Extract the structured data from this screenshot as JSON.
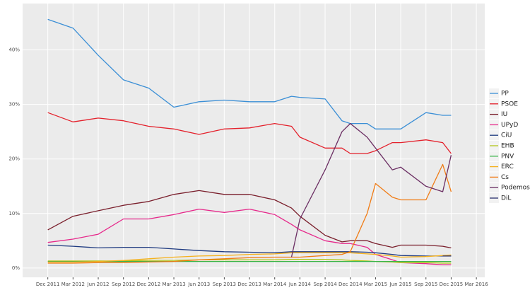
{
  "chart_data": {
    "type": "line",
    "x": [
      "2011-12",
      "2012-03",
      "2012-06",
      "2012-09",
      "2012-12",
      "2013-03",
      "2013-06",
      "2013-09",
      "2013-12",
      "2014-03",
      "2014-05",
      "2014-06",
      "2014-09",
      "2014-11",
      "2014-12",
      "2015-02",
      "2015-03",
      "2015-05",
      "2015-06",
      "2015-09",
      "2015-11",
      "2015-12"
    ],
    "series": [
      {
        "name": "PP",
        "color": "#3b8fd6",
        "values": [
          45.6,
          44,
          39,
          34.5,
          33,
          29.5,
          30.5,
          30.8,
          30.5,
          30.5,
          31.5,
          31.3,
          31,
          27,
          26.5,
          26.5,
          25.5,
          25.5,
          25.5,
          28.5,
          28,
          28
        ]
      },
      {
        "name": "PSOE",
        "color": "#e4202b",
        "values": [
          28.5,
          26.8,
          27.5,
          27,
          26,
          25.5,
          24.5,
          25.5,
          25.7,
          26.5,
          26,
          24,
          22,
          22,
          21,
          21,
          21.5,
          23,
          23,
          23.5,
          23,
          21
        ]
      },
      {
        "name": "IU",
        "color": "#7a1f2c",
        "values": [
          7,
          9.5,
          10.5,
          11.5,
          12.2,
          13.5,
          14.2,
          13.5,
          13.5,
          12.5,
          11,
          9.5,
          6,
          4.8,
          5,
          5,
          4.5,
          3.8,
          4.2,
          4.2,
          4,
          3.7
        ]
      },
      {
        "name": "UPyD",
        "color": "#e6298b",
        "values": [
          4.7,
          5.3,
          6.2,
          9,
          9,
          9.8,
          10.8,
          10.2,
          10.8,
          9.8,
          8,
          7,
          5,
          4.5,
          4.5,
          3.8,
          2.5,
          1.5,
          1,
          0.8,
          0.6,
          0.6
        ]
      },
      {
        "name": "CiU",
        "color": "#1e3a80",
        "values": [
          4.2,
          4,
          3.7,
          3.8,
          3.8,
          3.5,
          3.2,
          3,
          2.9,
          2.8,
          3,
          3,
          3,
          3,
          3,
          2.9,
          2.8,
          2.5,
          2.3,
          2.2,
          2.2,
          2.2
        ]
      },
      {
        "name": "EHB",
        "color": "#b3c51a",
        "values": [
          1.3,
          1.3,
          1.3,
          1.3,
          1.4,
          1.4,
          1.5,
          1.5,
          1.5,
          1.5,
          1.6,
          1.6,
          1.6,
          1.5,
          1.4,
          1.3,
          1.2,
          1.1,
          1,
          1,
          0.9,
          0.9
        ]
      },
      {
        "name": "PNV",
        "color": "#3bb54a",
        "values": [
          1.2,
          1.2,
          1.2,
          1.2,
          1.2,
          1.2,
          1.2,
          1.2,
          1.2,
          1.2,
          1.2,
          1.2,
          1.2,
          1.2,
          1.2,
          1.2,
          1.2,
          1.2,
          1.2,
          1.2,
          1.2,
          1.2
        ]
      },
      {
        "name": "ERC",
        "color": "#f5b11c",
        "values": [
          1.1,
          1.1,
          1.2,
          1.4,
          1.7,
          2,
          2.2,
          2.3,
          2.5,
          2.6,
          2.8,
          2.8,
          2.8,
          2.8,
          2.8,
          2.6,
          2.5,
          2.2,
          2,
          2.1,
          2.3,
          2.4
        ]
      },
      {
        "name": "Cs",
        "color": "#f07c16",
        "values": [
          0.9,
          0.9,
          1,
          1,
          1.1,
          1.2,
          1.5,
          1.7,
          1.9,
          2,
          2,
          2,
          2.3,
          2.5,
          3,
          10,
          15.5,
          13,
          12.5,
          12.5,
          19,
          14
        ]
      },
      {
        "name": "Podemos",
        "color": "#6b2e63",
        "values": [
          null,
          null,
          null,
          null,
          null,
          null,
          null,
          null,
          null,
          null,
          2,
          9,
          18,
          25,
          26.5,
          24,
          22,
          18,
          18.5,
          15,
          14,
          20.7
        ]
      },
      {
        "name": "DiL",
        "color": "#2a2f6e",
        "values": [
          null,
          null,
          null,
          null,
          null,
          null,
          null,
          null,
          null,
          null,
          null,
          null,
          null,
          null,
          null,
          null,
          null,
          null,
          null,
          null,
          2.2,
          2.2
        ]
      }
    ],
    "xlim": [
      "2011-09",
      "2016-04"
    ],
    "xticks": [
      {
        "value": "2011-12",
        "label": "Dec 2011"
      },
      {
        "value": "2012-03",
        "label": "Mar 2012"
      },
      {
        "value": "2012-06",
        "label": "Jun 2012"
      },
      {
        "value": "2012-09",
        "label": "Sep 2012"
      },
      {
        "value": "2012-12",
        "label": "Dec 2012"
      },
      {
        "value": "2013-03",
        "label": "Mar 2013"
      },
      {
        "value": "2013-06",
        "label": "Jun 2013"
      },
      {
        "value": "2013-09",
        "label": "Sep 2013"
      },
      {
        "value": "2013-12",
        "label": "Dec 2013"
      },
      {
        "value": "2014-03",
        "label": "Mar 2014"
      },
      {
        "value": "2014-06",
        "label": "Jun 2014"
      },
      {
        "value": "2014-09",
        "label": "Sep 2014"
      },
      {
        "value": "2014-12",
        "label": "Dec 2014"
      },
      {
        "value": "2015-03",
        "label": "Mar 2015"
      },
      {
        "value": "2015-06",
        "label": "Jun 2015"
      },
      {
        "value": "2015-09",
        "label": "Sep 2015"
      },
      {
        "value": "2015-12",
        "label": "Dec 2015"
      },
      {
        "value": "2016-03",
        "label": "Mar 2016"
      }
    ],
    "ylim": [
      -1.7,
      48.5
    ],
    "yticks": [
      {
        "value": 0,
        "label": "0%"
      },
      {
        "value": 10,
        "label": "10%"
      },
      {
        "value": 20,
        "label": "20%"
      },
      {
        "value": 30,
        "label": "30%"
      },
      {
        "value": 40,
        "label": "40%"
      }
    ],
    "grid": true,
    "legend": "right"
  }
}
